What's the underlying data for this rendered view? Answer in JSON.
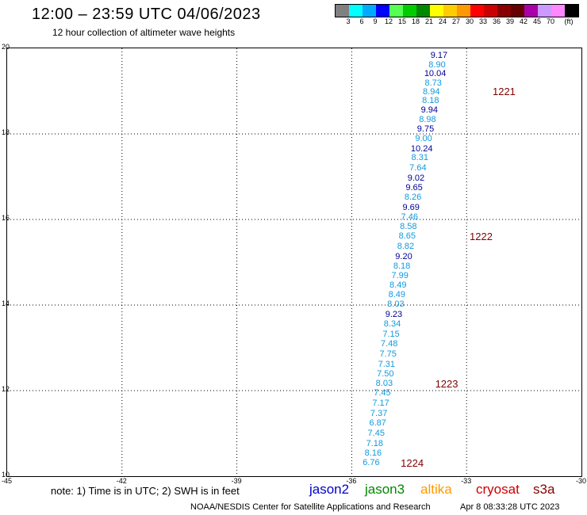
{
  "header": {
    "title": "12:00 – 23:59 UTC 04/06/2023",
    "subtitle": "12 hour collection of altimeter wave heights"
  },
  "colorbar": {
    "colors": [
      "#808080",
      "#00ffff",
      "#00aaff",
      "#0000ff",
      "#55ff55",
      "#00cc00",
      "#008800",
      "#ffff00",
      "#ffcc00",
      "#ff9900",
      "#ff0000",
      "#cc0000",
      "#880000",
      "#660000",
      "#aa00aa",
      "#cc99ff",
      "#ff88ff",
      "#000000"
    ],
    "labels": [
      "3",
      "6",
      "9",
      "12",
      "15",
      "18",
      "21",
      "24",
      "27",
      "30",
      "33",
      "36",
      "39",
      "42",
      "45",
      "70",
      "(ft)"
    ]
  },
  "axes": {
    "x_ticks": [
      "-45",
      "-42",
      "-39",
      "-36",
      "-33",
      "-30"
    ],
    "y_ticks": [
      "20",
      "18",
      "16",
      "14",
      "12",
      "10"
    ],
    "x_range": [
      -45,
      -30
    ],
    "y_range": [
      10,
      20
    ]
  },
  "satellite_colors": {
    "jason2": "#0000cc",
    "jason3": "#008800",
    "altika": "#ff9900",
    "cryosat": "#cc0000",
    "s3a": "#880000",
    "light": "#1199dd",
    "dark": "#000099"
  },
  "observations": [
    {
      "lon": -33.7,
      "lat": 19.8,
      "v": "9.17",
      "c": "dark"
    },
    {
      "lon": -33.75,
      "lat": 19.58,
      "v": "8.90",
      "c": "light"
    },
    {
      "lon": -33.8,
      "lat": 19.37,
      "v": "10.04",
      "c": "dark"
    },
    {
      "lon": -33.85,
      "lat": 19.15,
      "v": "8.73",
      "c": "light"
    },
    {
      "lon": -33.9,
      "lat": 18.95,
      "v": "8.94",
      "c": "light"
    },
    {
      "lon": -33.92,
      "lat": 18.75,
      "v": "8.18",
      "c": "light"
    },
    {
      "lon": -33.95,
      "lat": 18.52,
      "v": "9.94",
      "c": "dark"
    },
    {
      "lon": -34.0,
      "lat": 18.29,
      "v": "8.98",
      "c": "light"
    },
    {
      "lon": -34.05,
      "lat": 18.07,
      "v": "9.75",
      "c": "dark"
    },
    {
      "lon": -34.1,
      "lat": 17.85,
      "v": "9.00",
      "c": "light"
    },
    {
      "lon": -34.15,
      "lat": 17.62,
      "v": "10.24",
      "c": "dark"
    },
    {
      "lon": -34.2,
      "lat": 17.4,
      "v": "8.31",
      "c": "light"
    },
    {
      "lon": -34.25,
      "lat": 17.17,
      "v": "7.64",
      "c": "light"
    },
    {
      "lon": -34.3,
      "lat": 16.93,
      "v": "9.02",
      "c": "dark"
    },
    {
      "lon": -34.35,
      "lat": 16.7,
      "v": "9.65",
      "c": "dark"
    },
    {
      "lon": -34.38,
      "lat": 16.48,
      "v": "8.26",
      "c": "light"
    },
    {
      "lon": -34.43,
      "lat": 16.25,
      "v": "9.69",
      "c": "dark"
    },
    {
      "lon": -34.47,
      "lat": 16.02,
      "v": "7.46",
      "c": "light"
    },
    {
      "lon": -34.5,
      "lat": 15.8,
      "v": "8.58",
      "c": "light"
    },
    {
      "lon": -34.53,
      "lat": 15.57,
      "v": "8.65",
      "c": "light"
    },
    {
      "lon": -34.57,
      "lat": 15.33,
      "v": "8.82",
      "c": "light"
    },
    {
      "lon": -34.62,
      "lat": 15.1,
      "v": "9.20",
      "c": "dark"
    },
    {
      "lon": -34.67,
      "lat": 14.87,
      "v": "8.18",
      "c": "light"
    },
    {
      "lon": -34.72,
      "lat": 14.64,
      "v": "7.99",
      "c": "light"
    },
    {
      "lon": -34.77,
      "lat": 14.42,
      "v": "8.49",
      "c": "light"
    },
    {
      "lon": -34.8,
      "lat": 14.2,
      "v": "8.49",
      "c": "light"
    },
    {
      "lon": -34.83,
      "lat": 13.98,
      "v": "8.03",
      "c": "light"
    },
    {
      "lon": -34.88,
      "lat": 13.75,
      "v": "9.23",
      "c": "dark"
    },
    {
      "lon": -34.92,
      "lat": 13.52,
      "v": "8.34",
      "c": "light"
    },
    {
      "lon": -34.95,
      "lat": 13.28,
      "v": "7.15",
      "c": "light"
    },
    {
      "lon": -35.0,
      "lat": 13.05,
      "v": "7.48",
      "c": "light"
    },
    {
      "lon": -35.03,
      "lat": 12.82,
      "v": "7.75",
      "c": "light"
    },
    {
      "lon": -35.07,
      "lat": 12.58,
      "v": "7.31",
      "c": "light"
    },
    {
      "lon": -35.1,
      "lat": 12.36,
      "v": "7.50",
      "c": "light"
    },
    {
      "lon": -35.13,
      "lat": 12.13,
      "v": "8.03",
      "c": "light"
    },
    {
      "lon": -35.18,
      "lat": 11.9,
      "v": "7.45",
      "c": "light"
    },
    {
      "lon": -35.22,
      "lat": 11.67,
      "v": "7.17",
      "c": "light"
    },
    {
      "lon": -35.27,
      "lat": 11.43,
      "v": "7.37",
      "c": "light"
    },
    {
      "lon": -35.3,
      "lat": 11.2,
      "v": "6.87",
      "c": "light"
    },
    {
      "lon": -35.34,
      "lat": 10.97,
      "v": "7.45",
      "c": "light"
    },
    {
      "lon": -35.38,
      "lat": 10.73,
      "v": "7.18",
      "c": "light"
    },
    {
      "lon": -35.42,
      "lat": 10.5,
      "v": "8.16",
      "c": "light"
    },
    {
      "lon": -35.47,
      "lat": 10.27,
      "v": "6.76",
      "c": "light"
    }
  ],
  "passes": [
    {
      "lon": -32.3,
      "lat": 18.96,
      "label": "1221"
    },
    {
      "lon": -32.9,
      "lat": 15.57,
      "label": "1222"
    },
    {
      "lon": -33.8,
      "lat": 12.13,
      "label": "1223"
    },
    {
      "lon": -34.7,
      "lat": 10.27,
      "label": "1224"
    }
  ],
  "legend": {
    "note": "note:  1) Time is in UTC;  2) SWH is in feet",
    "satellites": [
      "jason2",
      "jason3",
      "altika",
      "cryosat",
      "s3a"
    ]
  },
  "footer": {
    "source": "NOAA/NESDIS Center for Satellite Applications and Research",
    "timestamp": "Apr  8 08:33:28 UTC 2023"
  }
}
